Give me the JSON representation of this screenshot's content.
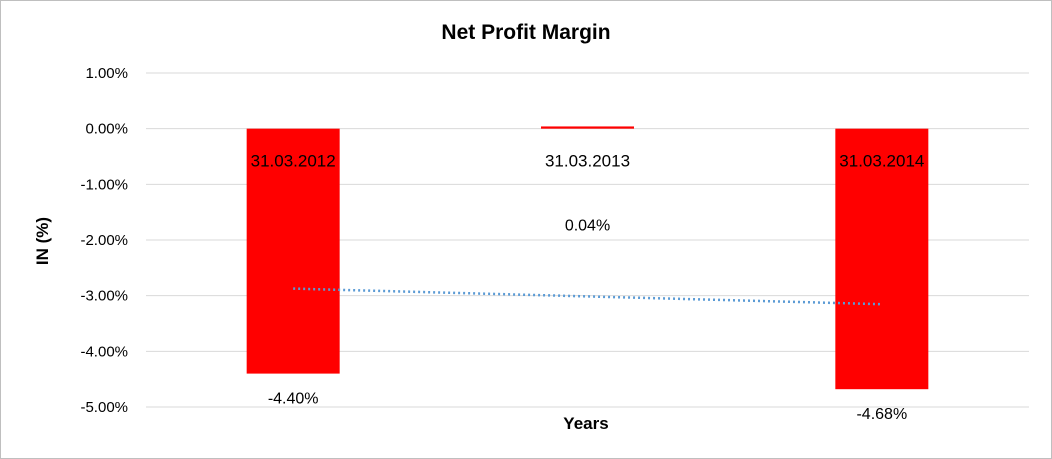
{
  "chart_data": {
    "type": "bar",
    "title": "Net Profit Margin",
    "xlabel": "Years",
    "ylabel": "IN (%)",
    "categories": [
      "31.03.2012",
      "31.03.2013",
      "31.03.2014"
    ],
    "values": [
      -4.4,
      0.04,
      -4.68
    ],
    "data_labels": [
      "-4.40%",
      "0.04%",
      "-4.68%"
    ],
    "ylim": [
      -5,
      1
    ],
    "yticks": [
      1,
      0,
      -1,
      -2,
      -3,
      -4,
      -5
    ],
    "ytick_labels": [
      "1.00%",
      "0.00%",
      "-1.00%",
      "-2.00%",
      "-3.00%",
      "-4.00%",
      "-5.00%"
    ],
    "grid": true,
    "bar_color": "#ff0000",
    "trendline": {
      "type": "linear",
      "style": "dotted",
      "color": "#5b9bd5"
    }
  }
}
